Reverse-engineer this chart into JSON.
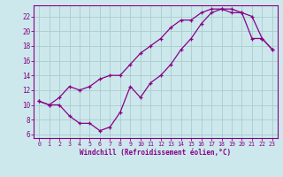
{
  "xlabel": "Windchill (Refroidissement éolien,°C)",
  "background_color": "#cce8ec",
  "line_color": "#880088",
  "grid_color": "#aacccc",
  "xlim": [
    -0.5,
    23.5
  ],
  "ylim": [
    5.5,
    23.5
  ],
  "xticks": [
    0,
    1,
    2,
    3,
    4,
    5,
    6,
    7,
    8,
    9,
    10,
    11,
    12,
    13,
    14,
    15,
    16,
    17,
    18,
    19,
    20,
    21,
    22,
    23
  ],
  "yticks": [
    6,
    8,
    10,
    12,
    14,
    16,
    18,
    20,
    22
  ],
  "line1_x": [
    0,
    1,
    2,
    3,
    4,
    5,
    6,
    7,
    8,
    9,
    10,
    11,
    12,
    13,
    14,
    15,
    16,
    17,
    18,
    19,
    20,
    21,
    22,
    23
  ],
  "line1_y": [
    10.5,
    10,
    10,
    8.5,
    7.5,
    7.5,
    6.5,
    7.0,
    9.0,
    12.5,
    11,
    13,
    14,
    15.5,
    17.5,
    19,
    21,
    22.5,
    23,
    23,
    22.5,
    19,
    19,
    17.5
  ],
  "line2_x": [
    0,
    1,
    2,
    3,
    4,
    5,
    6,
    7,
    8,
    9,
    10,
    11,
    12,
    13,
    14,
    15,
    16,
    17,
    18,
    19,
    20,
    21,
    22,
    23
  ],
  "line2_y": [
    10.5,
    10,
    11,
    12.5,
    12,
    12.5,
    13.5,
    14,
    14,
    15.5,
    17,
    18,
    19,
    20.5,
    21.5,
    21.5,
    22.5,
    23,
    23,
    22.5,
    22.5,
    22,
    19,
    17.5
  ]
}
